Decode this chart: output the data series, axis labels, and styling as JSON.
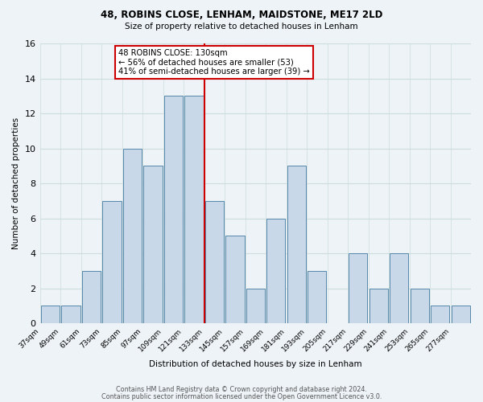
{
  "title1": "48, ROBINS CLOSE, LENHAM, MAIDSTONE, ME17 2LD",
  "title2": "Size of property relative to detached houses in Lenham",
  "xlabel": "Distribution of detached houses by size in Lenham",
  "ylabel": "Number of detached properties",
  "bin_labels": [
    "37sqm",
    "49sqm",
    "61sqm",
    "73sqm",
    "85sqm",
    "97sqm",
    "109sqm",
    "121sqm",
    "133sqm",
    "145sqm",
    "157sqm",
    "169sqm",
    "181sqm",
    "193sqm",
    "205sqm",
    "217sqm",
    "229sqm",
    "241sqm",
    "253sqm",
    "265sqm",
    "277sqm"
  ],
  "bin_edges": [
    37,
    49,
    61,
    73,
    85,
    97,
    109,
    121,
    133,
    145,
    157,
    169,
    181,
    193,
    205,
    217,
    229,
    241,
    253,
    265,
    277,
    289
  ],
  "counts": [
    1,
    1,
    3,
    7,
    10,
    9,
    13,
    13,
    7,
    5,
    2,
    6,
    9,
    3,
    0,
    4,
    2,
    4,
    2,
    1,
    1
  ],
  "vline_x": 133,
  "annotation_title": "48 ROBINS CLOSE: 130sqm",
  "annotation_line1": "← 56% of detached houses are smaller (53)",
  "annotation_line2": "41% of semi-detached houses are larger (39) →",
  "bar_facecolor": "#c8d8e8",
  "bar_edgecolor": "#5588aa",
  "vline_color": "#cc0000",
  "annotation_box_edgecolor": "#cc0000",
  "annotation_bg": "#ffffff",
  "grid_color": "#ccdddd",
  "ylim": [
    0,
    16
  ],
  "yticks": [
    0,
    2,
    4,
    6,
    8,
    10,
    12,
    14,
    16
  ],
  "footnote1": "Contains HM Land Registry data © Crown copyright and database right 2024.",
  "footnote2": "Contains public sector information licensed under the Open Government Licence v3.0.",
  "bg_color": "#eef3f7"
}
